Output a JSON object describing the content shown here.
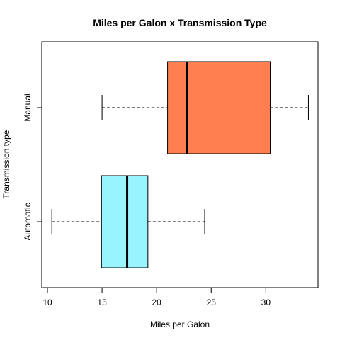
{
  "chart_data": {
    "type": "boxplot",
    "orientation": "horizontal",
    "title": "Miles per Galon x Transmission Type",
    "xlabel": "Miles per Galon",
    "ylabel": "Transmission type",
    "xlim": [
      10,
      34
    ],
    "xticks": [
      10,
      15,
      20,
      25,
      30
    ],
    "categories": [
      "Automatic",
      "Manual"
    ],
    "series": [
      {
        "category": "Automatic",
        "min": 10.4,
        "q1": 14.95,
        "median": 17.3,
        "q3": 19.2,
        "max": 24.4,
        "color": "#98F5FF"
      },
      {
        "category": "Manual",
        "min": 15.0,
        "q1": 21.0,
        "median": 22.8,
        "q3": 30.4,
        "max": 33.9,
        "color": "#FF7F50"
      }
    ],
    "grid": false,
    "legend": "none"
  }
}
